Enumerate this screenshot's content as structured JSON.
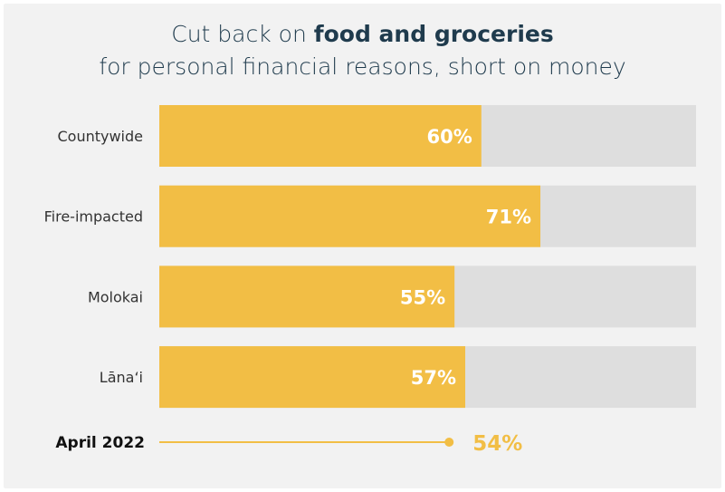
{
  "title": {
    "line1_prefix": "Cut back on ",
    "line1_bold": "food and groceries",
    "line2": "for personal financial reasons, short on money"
  },
  "colors": {
    "bar": "#f2be45",
    "track": "#dedede",
    "background": "#f2f2f2",
    "title": "#1f3b4d",
    "reference": "#f2be45"
  },
  "chart_data": {
    "type": "bar",
    "orientation": "horizontal",
    "categories": [
      "Countywide",
      "Fire-impacted",
      "Molokai",
      "Lāna‘i"
    ],
    "values": [
      60,
      71,
      55,
      57
    ],
    "value_labels": [
      "60%",
      "71%",
      "55%",
      "57%"
    ],
    "xlim": [
      0,
      100
    ],
    "reference": {
      "label": "April 2022",
      "value": 54,
      "value_label": "54%"
    },
    "grid": false,
    "legend": "none"
  }
}
